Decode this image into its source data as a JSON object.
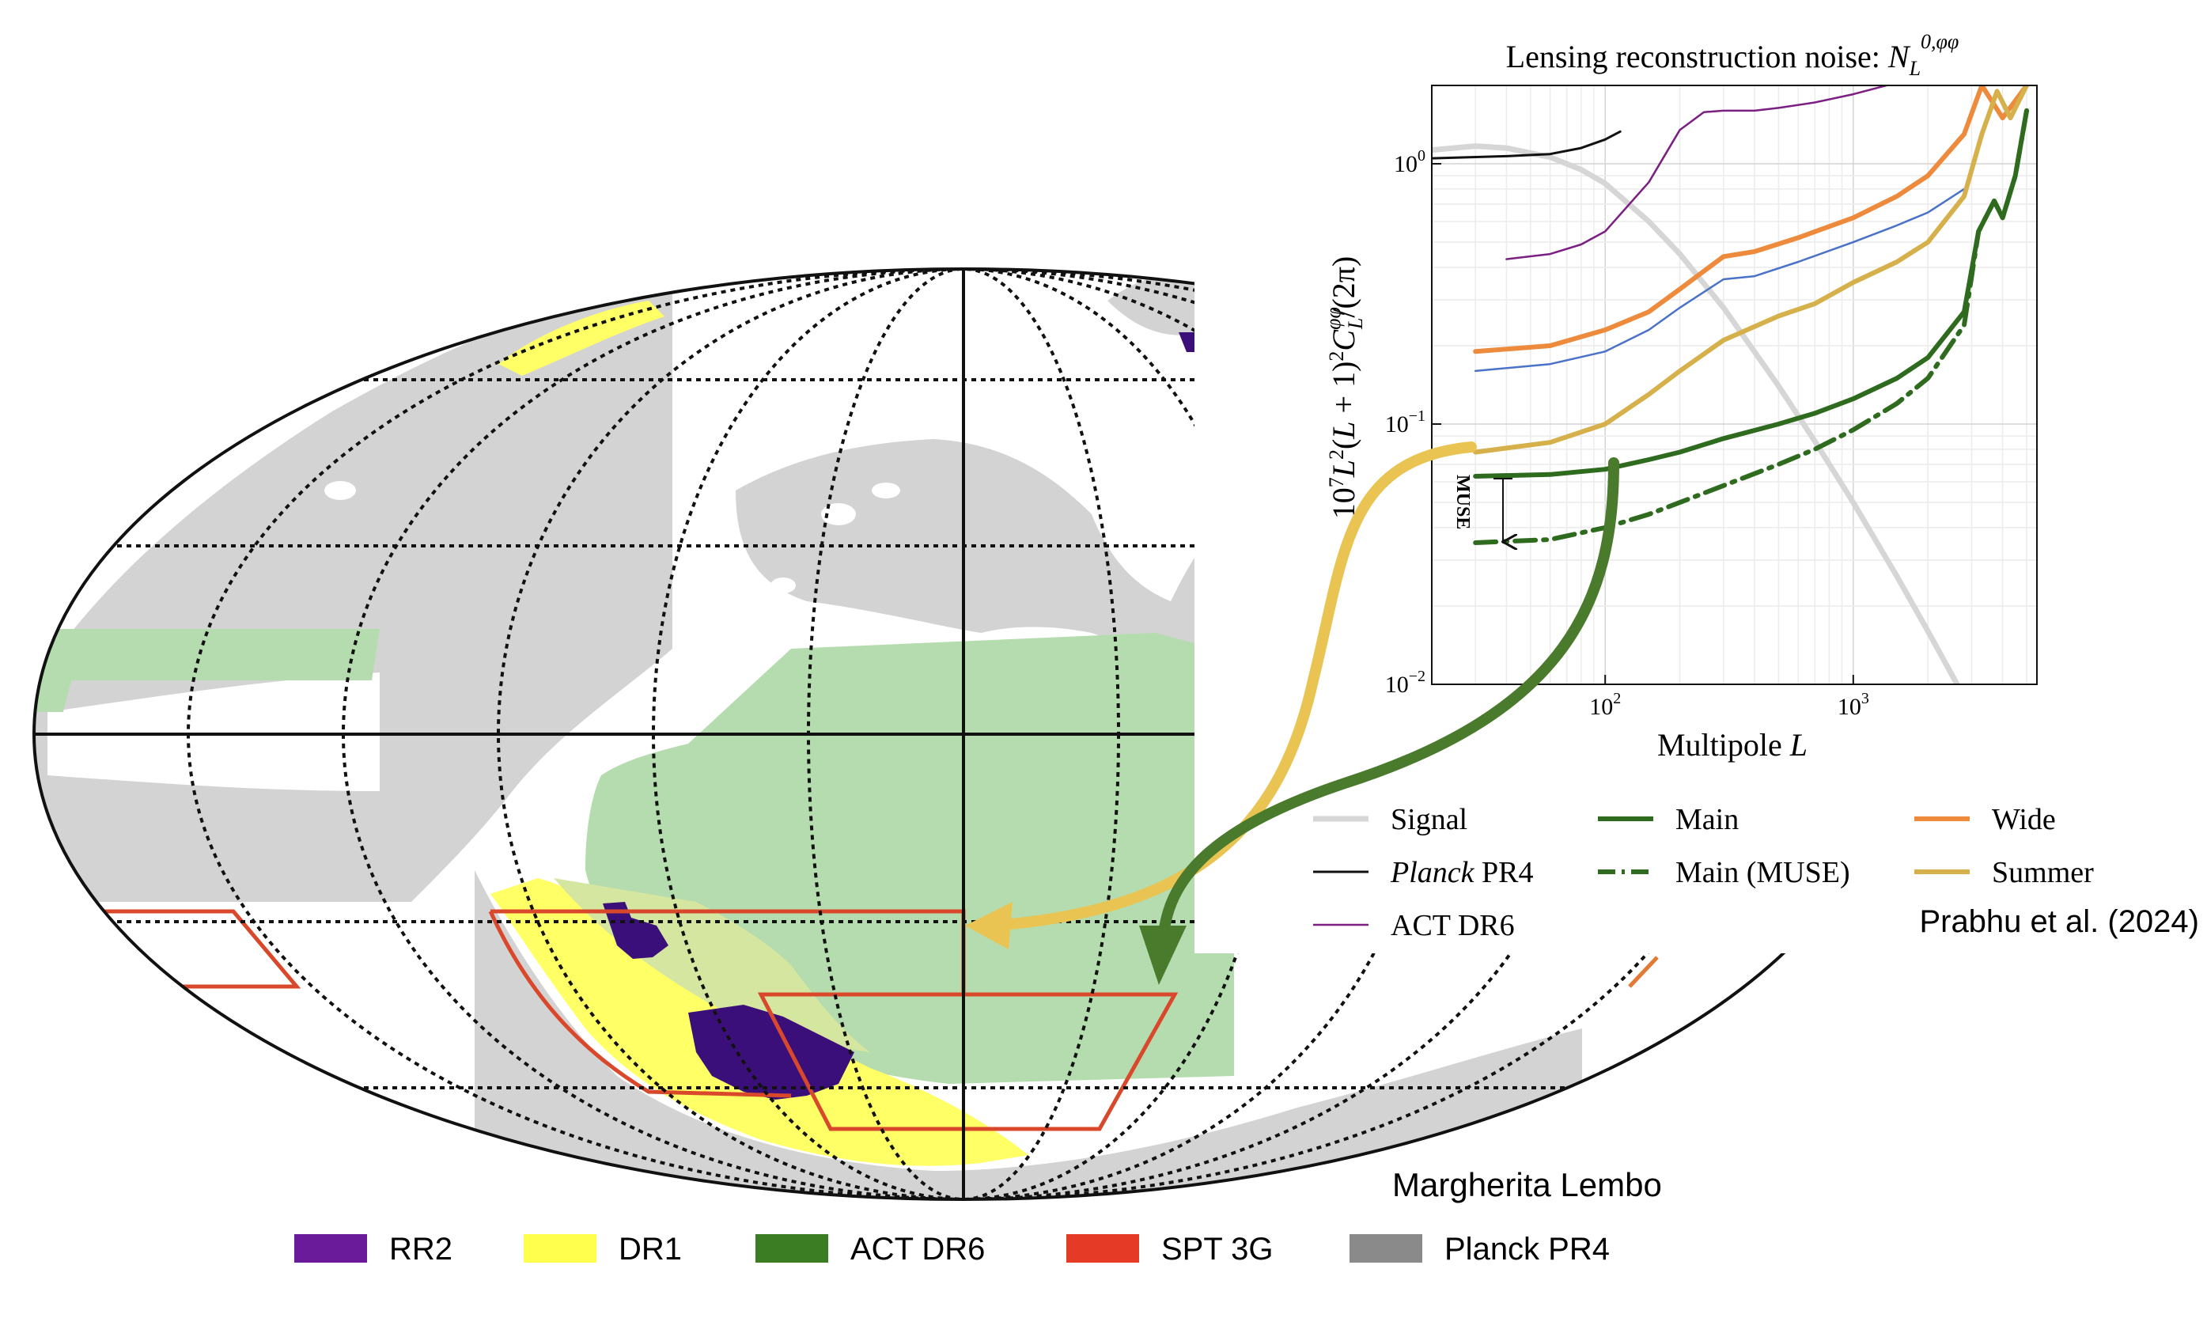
{
  "chart_data": [
    {
      "type": "map",
      "title": "",
      "projection": "mollweide",
      "legend_position": "bottom",
      "legend": [
        {
          "name": "RR2",
          "color": "#6a1b9a"
        },
        {
          "name": "DR1",
          "color": "#ffff4d"
        },
        {
          "name": "ACT DR6",
          "color": "#3a7d22"
        },
        {
          "name": "SPT 3G",
          "color": "#e53a25"
        },
        {
          "name": "Planck PR4",
          "color": "#8a8a8a"
        }
      ],
      "regions": {
        "planck_mask": "#d3d3d3",
        "act_dr6_footprint": "#b5dcae",
        "dr1_footprint": "#ffff66",
        "dr1_act_overlap": "#d5e6a0",
        "rr2_patches": "#3b0f7a",
        "spt3g_outline": "#d9482b",
        "wide_outline": "#e07a34"
      },
      "credit": "Margherita Lembo",
      "grid": true
    },
    {
      "type": "line",
      "title": "Lensing reconstruction noise: ",
      "title_symbol": {
        "base": "N",
        "sub": "L",
        "sup": "0,φφ"
      },
      "xlabel_text": "Multipole ",
      "xlabel_var": "L",
      "ylabel": "10⁷L²(L + 1)²C_L^φφ/(2π)",
      "xscale": "log",
      "yscale": "log",
      "xlim": [
        20,
        5500
      ],
      "ylim": [
        0.01,
        2
      ],
      "xticks": [
        {
          "value": 100,
          "base": "10",
          "exp": "2"
        },
        {
          "value": 1000,
          "base": "10",
          "exp": "3"
        }
      ],
      "yticks": [
        {
          "value": 0.01,
          "base": "10",
          "exp": "−2"
        },
        {
          "value": 0.1,
          "base": "10",
          "exp": "−1"
        },
        {
          "value": 1,
          "base": "10",
          "exp": "0"
        }
      ],
      "grid": true,
      "legend_position": "bottom",
      "annotation": "MUSE",
      "source_credit": "Prabhu et al. (2024)",
      "series": [
        {
          "key": "signal",
          "name": "Signal",
          "style": "solid",
          "color": "#d6d6d6",
          "x": [
            20,
            30,
            40,
            60,
            80,
            100,
            150,
            200,
            300,
            500,
            700,
            1000,
            1500,
            2000,
            2700
          ],
          "y": [
            1.13,
            1.17,
            1.15,
            1.06,
            0.95,
            0.84,
            0.6,
            0.45,
            0.28,
            0.14,
            0.086,
            0.05,
            0.026,
            0.016,
            0.0095
          ]
        },
        {
          "key": "planck",
          "name": "Planck PR4",
          "name_italic": "Planck",
          "name_rest": " PR4",
          "style": "solid",
          "color": "#111111",
          "x": [
            20,
            40,
            60,
            80,
            100,
            115
          ],
          "y": [
            1.05,
            1.07,
            1.09,
            1.15,
            1.24,
            1.33
          ]
        },
        {
          "key": "actdr6",
          "name": "ACT DR6",
          "style": "solid",
          "color": "#7b1f82",
          "x": [
            40,
            60,
            80,
            100,
            150,
            200,
            250,
            300,
            400,
            500,
            700,
            1000,
            1500,
            2000
          ],
          "y": [
            0.43,
            0.45,
            0.49,
            0.55,
            0.85,
            1.35,
            1.58,
            1.6,
            1.6,
            1.64,
            1.72,
            1.85,
            2.05,
            2.2
          ]
        },
        {
          "key": "blue",
          "name": "",
          "style": "solid",
          "color": "#4a72c8",
          "x": [
            30,
            60,
            100,
            150,
            200,
            300,
            400,
            600,
            1000,
            1500,
            2000,
            2800
          ],
          "y": [
            0.16,
            0.17,
            0.19,
            0.23,
            0.28,
            0.36,
            0.37,
            0.42,
            0.5,
            0.58,
            0.65,
            0.8
          ]
        },
        {
          "key": "wide",
          "name": "Wide",
          "style": "solid",
          "color": "#ed8a3b",
          "x": [
            30,
            60,
            100,
            150,
            200,
            300,
            400,
            600,
            1000,
            1500,
            2000,
            2800,
            3300,
            4000,
            5000
          ],
          "y": [
            0.19,
            0.2,
            0.23,
            0.27,
            0.33,
            0.44,
            0.46,
            0.52,
            0.62,
            0.75,
            0.9,
            1.3,
            2.0,
            1.5,
            2.0
          ]
        },
        {
          "key": "summer",
          "name": "Summer",
          "style": "solid",
          "color": "#d6b04a",
          "x": [
            30,
            60,
            100,
            150,
            200,
            300,
            500,
            700,
            1000,
            1500,
            2000,
            2800,
            3300,
            3800,
            4300,
            5000
          ],
          "y": [
            0.078,
            0.085,
            0.1,
            0.13,
            0.16,
            0.21,
            0.26,
            0.29,
            0.35,
            0.42,
            0.5,
            0.75,
            1.3,
            1.9,
            1.5,
            2.0
          ]
        },
        {
          "key": "main",
          "name": "Main",
          "style": "solid",
          "color": "#2f6b1e",
          "x": [
            30,
            60,
            100,
            150,
            200,
            300,
            500,
            700,
            1000,
            1500,
            2000,
            2800,
            3200,
            3700,
            4000,
            4500,
            5000
          ],
          "y": [
            0.063,
            0.064,
            0.067,
            0.073,
            0.078,
            0.088,
            0.1,
            0.11,
            0.125,
            0.15,
            0.18,
            0.27,
            0.55,
            0.72,
            0.62,
            0.9,
            1.6
          ]
        },
        {
          "key": "muse",
          "name": "Main (MUSE)",
          "style": "dashdot",
          "color": "#2f6b1e",
          "x": [
            30,
            60,
            100,
            150,
            200,
            300,
            500,
            700,
            1000,
            1500,
            2000,
            2800,
            3200,
            3700,
            4000,
            4500,
            5000
          ],
          "y": [
            0.035,
            0.036,
            0.04,
            0.045,
            0.05,
            0.058,
            0.07,
            0.08,
            0.095,
            0.12,
            0.15,
            0.24,
            0.55,
            0.72,
            0.62,
            0.9,
            1.6
          ]
        }
      ]
    }
  ]
}
